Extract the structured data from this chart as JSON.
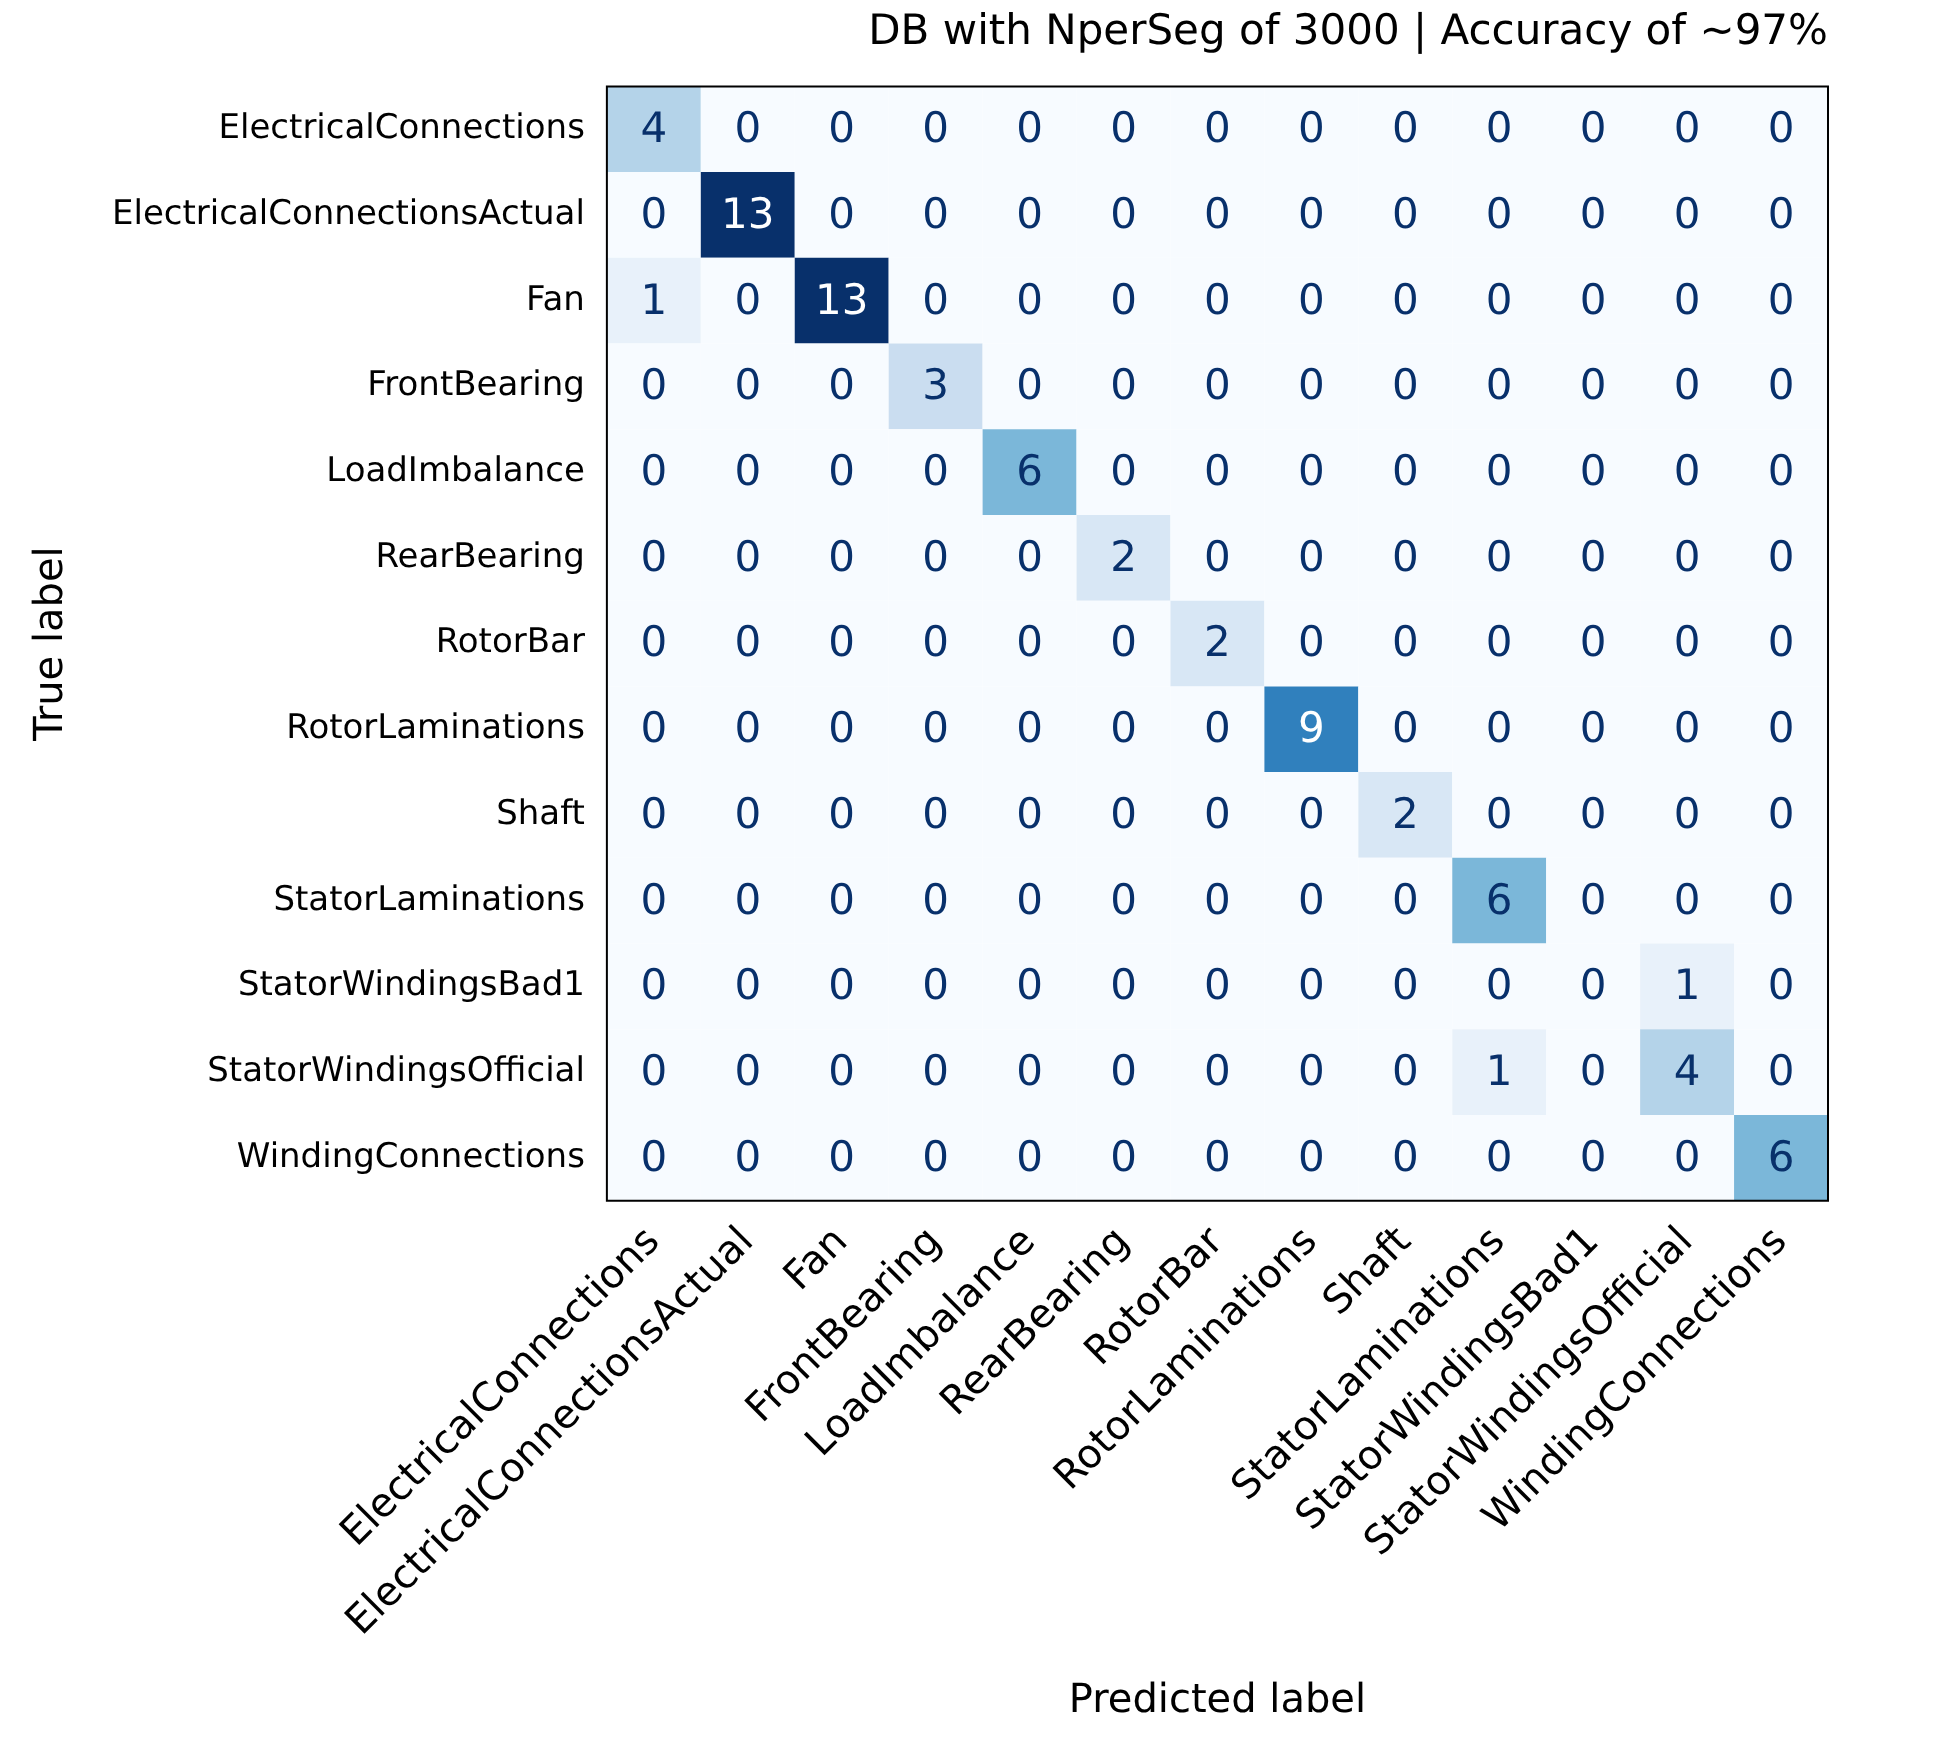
{
  "chart_data": {
    "type": "heatmap",
    "title": "DB with NperSeg of 3000 | Accuracy of ~97%",
    "xlabel": "Predicted label",
    "ylabel": "True label",
    "categories": [
      "ElectricalConnections",
      "ElectricalConnectionsActual",
      "Fan",
      "FrontBearing",
      "LoadImbalance",
      "RearBearing",
      "RotorBar",
      "RotorLaminations",
      "Shaft",
      "StatorLaminations",
      "StatorWindingsBad1",
      "StatorWindingsOfficial",
      "WindingConnections"
    ],
    "y_categories": [
      "ElectricalConnections",
      "ElectricalConnectionsActual",
      "Fan",
      "FrontBearing",
      "LoadImbalance",
      "RearBearing",
      "RotorBar",
      "RotorLaminations",
      "Shaft",
      "StatorLaminations",
      "StatorWindingsBad1",
      "StatorWindingsOfficial",
      "WindingConnections"
    ],
    "cells": [
      [
        4,
        0,
        0,
        0,
        0,
        0,
        0,
        0,
        0,
        0,
        0,
        0,
        0
      ],
      [
        0,
        13,
        0,
        0,
        0,
        0,
        0,
        0,
        0,
        0,
        0,
        0,
        0
      ],
      [
        1,
        0,
        13,
        0,
        0,
        0,
        0,
        0,
        0,
        0,
        0,
        0,
        0
      ],
      [
        0,
        0,
        0,
        3,
        0,
        0,
        0,
        0,
        0,
        0,
        0,
        0,
        0
      ],
      [
        0,
        0,
        0,
        0,
        6,
        0,
        0,
        0,
        0,
        0,
        0,
        0,
        0
      ],
      [
        0,
        0,
        0,
        0,
        0,
        2,
        0,
        0,
        0,
        0,
        0,
        0,
        0
      ],
      [
        0,
        0,
        0,
        0,
        0,
        0,
        2,
        0,
        0,
        0,
        0,
        0,
        0
      ],
      [
        0,
        0,
        0,
        0,
        0,
        0,
        0,
        9,
        0,
        0,
        0,
        0,
        0
      ],
      [
        0,
        0,
        0,
        0,
        0,
        0,
        0,
        0,
        2,
        0,
        0,
        0,
        0
      ],
      [
        0,
        0,
        0,
        0,
        0,
        0,
        0,
        0,
        0,
        6,
        0,
        0,
        0
      ],
      [
        0,
        0,
        0,
        0,
        0,
        0,
        0,
        0,
        0,
        0,
        0,
        1,
        0
      ],
      [
        0,
        0,
        0,
        0,
        0,
        0,
        0,
        0,
        0,
        1,
        0,
        4,
        0
      ],
      [
        0,
        0,
        0,
        0,
        0,
        0,
        0,
        0,
        0,
        0,
        0,
        0,
        6
      ]
    ],
    "data_labels": true,
    "grid": false,
    "legend": false
  }
}
